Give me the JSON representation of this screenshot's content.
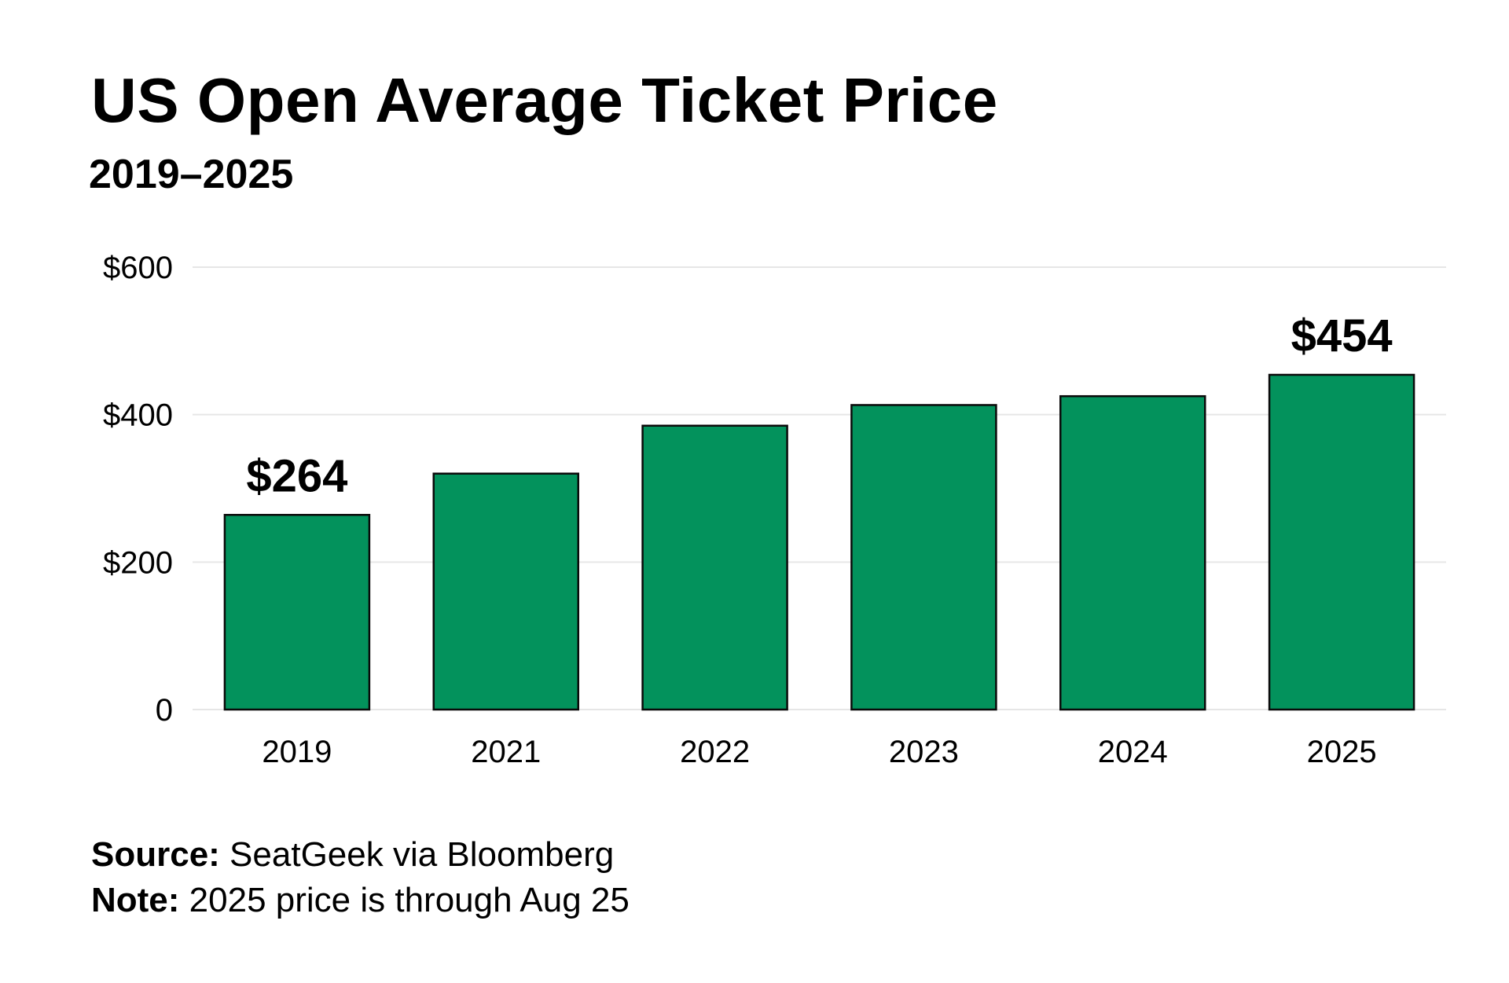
{
  "chart_data": {
    "type": "bar",
    "title": "US Open Average Ticket Price",
    "subtitle": "2019–2025",
    "categories": [
      "2019",
      "2021",
      "2022",
      "2023",
      "2024",
      "2025"
    ],
    "values": [
      264,
      320,
      385,
      413,
      425,
      454
    ],
    "data_labels": [
      {
        "index": 0,
        "text": "$264"
      },
      {
        "index": 5,
        "text": "$454"
      }
    ],
    "y_ticks": [
      {
        "value": 0,
        "label": "0"
      },
      {
        "value": 200,
        "label": "$200"
      },
      {
        "value": 400,
        "label": "$400"
      },
      {
        "value": 600,
        "label": "$600"
      }
    ],
    "ylim": [
      0,
      600
    ],
    "xlabel": "",
    "ylabel": "",
    "grid": "horizontal",
    "legend": "none",
    "bar_color": "#03925C",
    "bar_outline": "#0A0A0A",
    "grid_color": "#E6E6E6"
  },
  "footer": {
    "source_label": "Source:",
    "source_text": " SeatGeek via Bloomberg",
    "note_label": "Note:",
    "note_text": " 2025 price is through Aug 25"
  }
}
